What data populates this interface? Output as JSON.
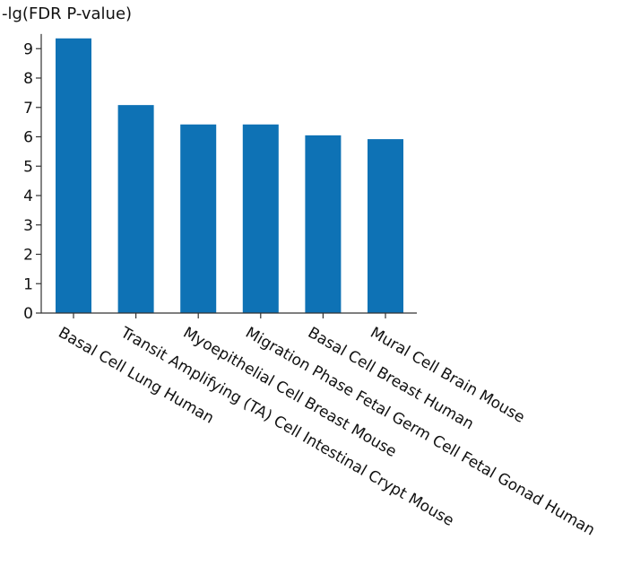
{
  "chart_data": {
    "type": "bar",
    "ylabel": "-lg(FDR P-value)",
    "categories": [
      "Basal Cell Lung Human",
      "Transit Amplifying (TA) Cell Intestinal Crypt Mouse",
      "Myoepithelial Cell Breast Mouse",
      "Migration Phase Fetal Germ Cell Fetal Gonad Human",
      "Basal Cell Breast Human",
      "Mural Cell Brain Mouse"
    ],
    "values": [
      9.35,
      7.08,
      6.42,
      6.42,
      6.05,
      5.92
    ],
    "ylim": [
      0,
      9.5
    ],
    "yticks": [
      "0",
      "1",
      "2",
      "3",
      "4",
      "5",
      "6",
      "7",
      "8",
      "9"
    ],
    "bar_color": "#0e72b5",
    "grid": false,
    "legend": "none"
  }
}
